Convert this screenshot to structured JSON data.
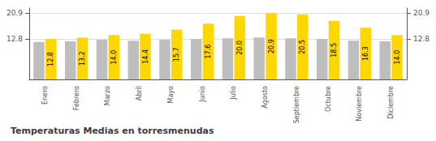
{
  "chart_data": {
    "type": "bar",
    "title": "Temperaturas Medias en torresmenudas",
    "categories": [
      "Enero",
      "Febrero",
      "Marzo",
      "Abril",
      "Mayo",
      "Junio",
      "Julio",
      "Agosto",
      "Septiembre",
      "Octubre",
      "Noviembre",
      "Diciembre"
    ],
    "series": [
      {
        "color": "#BEBEBE",
        "values": [
          11.8,
          12.0,
          12.5,
          12.2,
          12.5,
          12.8,
          13.0,
          13.2,
          13.0,
          12.8,
          12.2,
          12.0
        ]
      },
      {
        "color": "#FFD700",
        "values": [
          12.8,
          13.2,
          14.0,
          14.4,
          15.7,
          17.6,
          20.0,
          20.9,
          20.5,
          18.5,
          16.3,
          14.0
        ],
        "data_labels": true,
        "value_labels": [
          "12.8",
          "13.2",
          "14.0",
          "14.4",
          "15.7",
          "17.6",
          "20.0",
          "20.9",
          "20.5",
          "18.5",
          "16.3",
          "14.0"
        ]
      }
    ],
    "ylim": [
      0,
      22.5
    ],
    "yticks": [
      12.8,
      20.9
    ],
    "y2lim": [
      0,
      22.5
    ],
    "y2ticks": [
      12.8,
      20.9
    ],
    "grid": true
  }
}
